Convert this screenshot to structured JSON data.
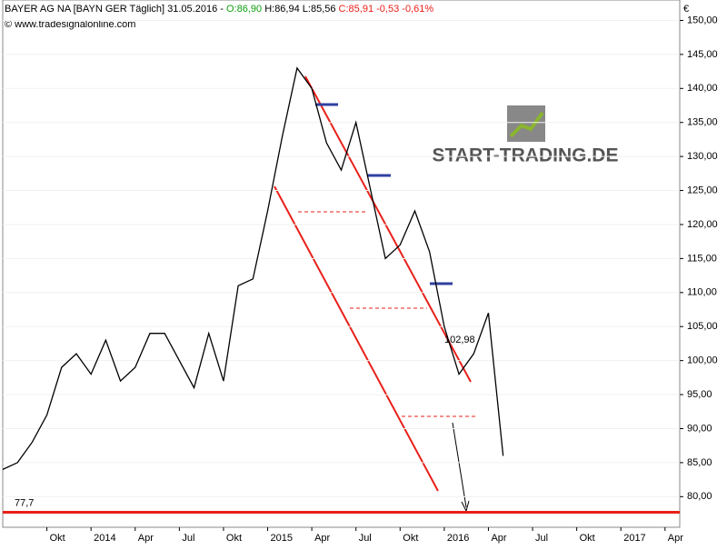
{
  "header": {
    "instrument": "BAYER AG  NA [BAYN GER  Täglich]",
    "date": "31.05.2016 -",
    "open": "O:86,90",
    "high": "H:86,94",
    "low": "L:85,56",
    "close": "C:85,91",
    "change": "-0,53",
    "change_pct": "-0,61%",
    "source": "© www.tradesignalonline.com",
    "watermark": "START-TRADING.DE"
  },
  "chart_data": {
    "type": "line",
    "currency": "€",
    "x": [
      "2013-07",
      "2013-08",
      "2013-09",
      "2013-10",
      "2013-11",
      "2013-12",
      "2014-01",
      "2014-02",
      "2014-03",
      "2014-04",
      "2014-05",
      "2014-06",
      "2014-07",
      "2014-08",
      "2014-09",
      "2014-10",
      "2014-11",
      "2014-12",
      "2015-01",
      "2015-02",
      "2015-03",
      "2015-04",
      "2015-05",
      "2015-06",
      "2015-07",
      "2015-08",
      "2015-09",
      "2015-10",
      "2015-11",
      "2015-12",
      "2016-01",
      "2016-02",
      "2016-03",
      "2016-04",
      "2016-05"
    ],
    "series": [
      {
        "name": "BAYER AG",
        "color": "#000000",
        "values": [
          84,
          85,
          88,
          92,
          99,
          101,
          98,
          103,
          97,
          99,
          104,
          104,
          100,
          96,
          104,
          97,
          111,
          112,
          122,
          133,
          143,
          140,
          132,
          128,
          135,
          125,
          115,
          117,
          122,
          116,
          105,
          98,
          101,
          107,
          86
        ]
      }
    ],
    "xlim": [
      "2013-07",
      "2017-05"
    ],
    "xticks": [
      {
        "value": "2013-10",
        "label": "Okt"
      },
      {
        "value": "2014-01",
        "label": "2014"
      },
      {
        "value": "2014-04",
        "label": "Apr"
      },
      {
        "value": "2014-07",
        "label": "Jul"
      },
      {
        "value": "2014-10",
        "label": "Okt"
      },
      {
        "value": "2015-01",
        "label": "2015"
      },
      {
        "value": "2015-04",
        "label": "Apr"
      },
      {
        "value": "2015-07",
        "label": "Jul"
      },
      {
        "value": "2015-10",
        "label": "Okt"
      },
      {
        "value": "2016-01",
        "label": "2016"
      },
      {
        "value": "2016-04",
        "label": "Apr"
      },
      {
        "value": "2016-07",
        "label": "Jul"
      },
      {
        "value": "2016-10",
        "label": "Okt"
      },
      {
        "value": "2017-01",
        "label": "2017"
      },
      {
        "value": "2017-04",
        "label": "Apr"
      }
    ],
    "ylim": [
      75.5,
      153
    ],
    "yticks": [
      {
        "value": 80,
        "label": "80,00"
      },
      {
        "value": 85,
        "label": "85,00"
      },
      {
        "value": 90,
        "label": "90,00"
      },
      {
        "value": 95,
        "label": "95,00"
      },
      {
        "value": 100,
        "label": "100,00"
      },
      {
        "value": 105,
        "label": "105,00"
      },
      {
        "value": 110,
        "label": "110,00"
      },
      {
        "value": 115,
        "label": "115,00"
      },
      {
        "value": 120,
        "label": "120,00"
      },
      {
        "value": 125,
        "label": "125,00"
      },
      {
        "value": 130,
        "label": "130,00"
      },
      {
        "value": 135,
        "label": "135,00"
      },
      {
        "value": 140,
        "label": "140,00"
      },
      {
        "value": 145,
        "label": "145,00"
      },
      {
        "value": 150,
        "label": "150,00"
      }
    ],
    "grid": true,
    "support": {
      "value": 77.7,
      "label": "77,7",
      "color": "#e8201a"
    },
    "level": {
      "value": 102.98,
      "label": "102,98",
      "color": "#e8201a"
    }
  }
}
